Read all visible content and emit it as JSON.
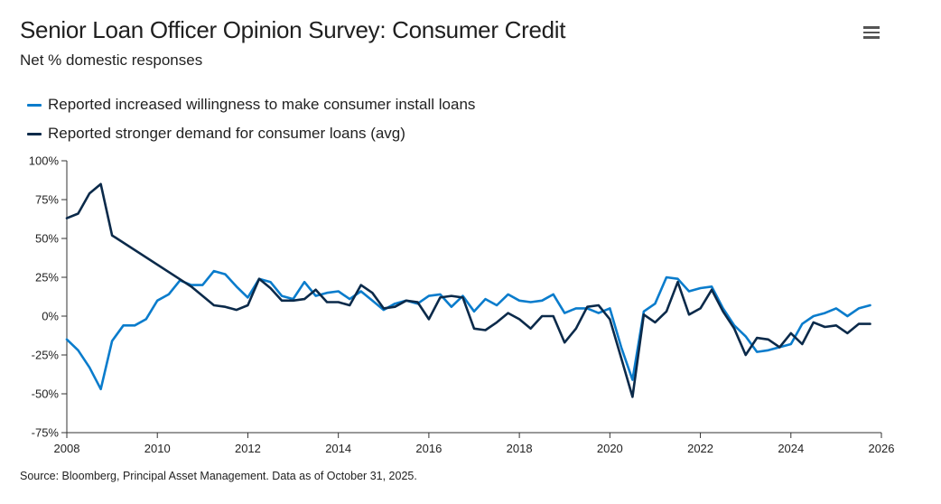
{
  "header": {
    "title": "Senior Loan Officer Opinion Survey: Consumer Credit",
    "subtitle": "Net % domestic responses"
  },
  "source": "Source: Bloomberg, Principal Asset Management. Data as of October 31, 2025.",
  "menu_icon": "hamburger-menu-icon",
  "colors": {
    "series1": "#0a7ccc",
    "series2": "#0b2a4a",
    "axis": "#333333"
  },
  "chart_data": {
    "type": "line",
    "title": "Senior Loan Officer Opinion Survey: Consumer Credit",
    "subtitle": "Net % domestic responses",
    "xlabel": "",
    "ylabel": "",
    "xlim": [
      2008,
      2026
    ],
    "ylim": [
      -75,
      100
    ],
    "y_ticks": [
      100,
      75,
      50,
      25,
      0,
      -25,
      -50,
      -75
    ],
    "y_tick_labels": [
      "100%",
      "75%",
      "50%",
      "25%",
      "0%",
      "-25%",
      "-50%",
      "-75%"
    ],
    "x_ticks": [
      2008,
      2010,
      2012,
      2014,
      2016,
      2018,
      2020,
      2022,
      2024,
      2026
    ],
    "x_tick_labels": [
      "2008",
      "2010",
      "2012",
      "2014",
      "2016",
      "2018",
      "2020",
      "2022",
      "2024",
      "2026"
    ],
    "grid": false,
    "legend_position": "top-left",
    "series": [
      {
        "name": "Reported increased willingness to make consumer install loans",
        "color": "#0a7ccc",
        "points": [
          [
            2008.0,
            -15
          ],
          [
            2008.25,
            -22
          ],
          [
            2008.5,
            -33
          ],
          [
            2008.75,
            -47
          ],
          [
            2009.0,
            -16
          ],
          [
            2009.25,
            -6
          ],
          [
            2009.5,
            -6
          ],
          [
            2009.75,
            -2
          ],
          [
            2010.0,
            10
          ],
          [
            2010.25,
            14
          ],
          [
            2010.5,
            23
          ],
          [
            2010.75,
            20
          ],
          [
            2011.0,
            20
          ],
          [
            2011.25,
            29
          ],
          [
            2011.5,
            27
          ],
          [
            2011.75,
            19
          ],
          [
            2012.0,
            12
          ],
          [
            2012.25,
            24
          ],
          [
            2012.5,
            22
          ],
          [
            2012.75,
            13
          ],
          [
            2013.0,
            11
          ],
          [
            2013.25,
            22
          ],
          [
            2013.5,
            13
          ],
          [
            2013.75,
            15
          ],
          [
            2014.0,
            16
          ],
          [
            2014.25,
            11
          ],
          [
            2014.5,
            16
          ],
          [
            2014.75,
            10
          ],
          [
            2015.0,
            4
          ],
          [
            2015.25,
            8
          ],
          [
            2015.5,
            10
          ],
          [
            2015.75,
            8
          ],
          [
            2016.0,
            13
          ],
          [
            2016.25,
            14
          ],
          [
            2016.5,
            6
          ],
          [
            2016.75,
            13
          ],
          [
            2017.0,
            3
          ],
          [
            2017.25,
            11
          ],
          [
            2017.5,
            7
          ],
          [
            2017.75,
            14
          ],
          [
            2018.0,
            10
          ],
          [
            2018.25,
            9
          ],
          [
            2018.5,
            10
          ],
          [
            2018.75,
            14
          ],
          [
            2019.0,
            2
          ],
          [
            2019.25,
            5
          ],
          [
            2019.5,
            5
          ],
          [
            2019.75,
            2
          ],
          [
            2020.0,
            5
          ],
          [
            2020.25,
            -20
          ],
          [
            2020.5,
            -41
          ],
          [
            2020.75,
            3
          ],
          [
            2021.0,
            8
          ],
          [
            2021.25,
            25
          ],
          [
            2021.5,
            24
          ],
          [
            2021.75,
            16
          ],
          [
            2022.0,
            18
          ],
          [
            2022.25,
            19
          ],
          [
            2022.5,
            5
          ],
          [
            2022.75,
            -6
          ],
          [
            2023.0,
            -13
          ],
          [
            2023.25,
            -23
          ],
          [
            2023.5,
            -22
          ],
          [
            2023.75,
            -20
          ],
          [
            2024.0,
            -18
          ],
          [
            2024.25,
            -5
          ],
          [
            2024.5,
            0
          ],
          [
            2024.75,
            2
          ],
          [
            2025.0,
            5
          ],
          [
            2025.25,
            0
          ],
          [
            2025.5,
            5
          ],
          [
            2025.75,
            7
          ]
        ]
      },
      {
        "name": "Reported stronger demand for consumer loans (avg)",
        "color": "#0b2a4a",
        "points": [
          [
            2008.0,
            63
          ],
          [
            2008.25,
            66
          ],
          [
            2008.5,
            79
          ],
          [
            2008.75,
            85
          ],
          [
            2009.0,
            52
          ],
          [
            2010.75,
            19
          ],
          [
            2011.25,
            7
          ],
          [
            2011.5,
            6
          ],
          [
            2011.75,
            4
          ],
          [
            2012.0,
            7
          ],
          [
            2012.25,
            24
          ],
          [
            2012.5,
            18
          ],
          [
            2012.75,
            10
          ],
          [
            2013.0,
            10
          ],
          [
            2013.25,
            11
          ],
          [
            2013.5,
            17
          ],
          [
            2013.75,
            9
          ],
          [
            2014.0,
            9
          ],
          [
            2014.25,
            7
          ],
          [
            2014.5,
            20
          ],
          [
            2014.75,
            15
          ],
          [
            2015.0,
            5
          ],
          [
            2015.25,
            6
          ],
          [
            2015.5,
            10
          ],
          [
            2015.75,
            9
          ],
          [
            2016.0,
            -2
          ],
          [
            2016.25,
            12
          ],
          [
            2016.5,
            13
          ],
          [
            2016.75,
            12
          ],
          [
            2017.0,
            -8
          ],
          [
            2017.25,
            -9
          ],
          [
            2017.5,
            -4
          ],
          [
            2017.75,
            2
          ],
          [
            2018.0,
            -2
          ],
          [
            2018.25,
            -8
          ],
          [
            2018.5,
            0
          ],
          [
            2018.75,
            0
          ],
          [
            2019.0,
            -17
          ],
          [
            2019.25,
            -8
          ],
          [
            2019.5,
            6
          ],
          [
            2019.75,
            7
          ],
          [
            2020.0,
            -2
          ],
          [
            2020.25,
            -27
          ],
          [
            2020.5,
            -52
          ],
          [
            2020.75,
            1
          ],
          [
            2021.0,
            -4
          ],
          [
            2021.25,
            3
          ],
          [
            2021.5,
            22
          ],
          [
            2021.75,
            1
          ],
          [
            2022.0,
            5
          ],
          [
            2022.25,
            17
          ],
          [
            2022.5,
            3
          ],
          [
            2022.75,
            -8
          ],
          [
            2023.0,
            -25
          ],
          [
            2023.25,
            -14
          ],
          [
            2023.5,
            -15
          ],
          [
            2023.75,
            -20
          ],
          [
            2024.0,
            -11
          ],
          [
            2024.25,
            -18
          ],
          [
            2024.5,
            -4
          ],
          [
            2024.75,
            -7
          ],
          [
            2025.0,
            -6
          ],
          [
            2025.25,
            -11
          ],
          [
            2025.5,
            -5
          ],
          [
            2025.75,
            -5
          ]
        ]
      }
    ]
  }
}
